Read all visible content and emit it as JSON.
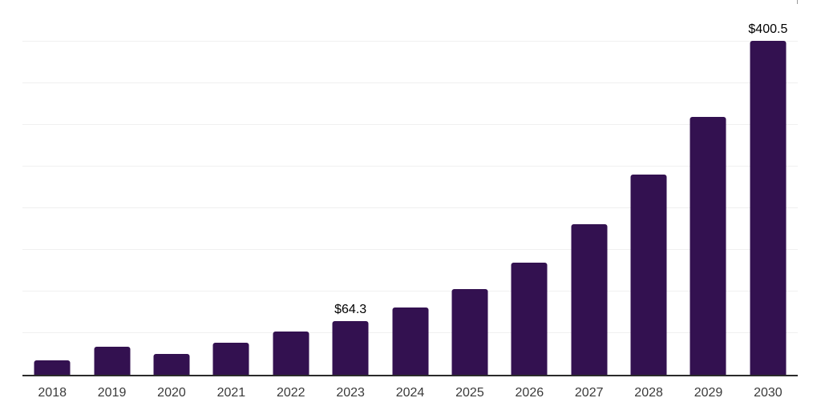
{
  "chart_data": {
    "type": "bar",
    "title": "",
    "xlabel": "",
    "ylabel": "",
    "categories": [
      "2018",
      "2019",
      "2020",
      "2021",
      "2022",
      "2023",
      "2024",
      "2025",
      "2026",
      "2027",
      "2028",
      "2029",
      "2030"
    ],
    "values": [
      17.8,
      33.5,
      24.8,
      38.3,
      52.4,
      64.3,
      80.3,
      103.3,
      134.7,
      181.0,
      240.0,
      309.7,
      400.5
    ],
    "data_labels": {
      "2023": "$64.3",
      "2030": "$400.5"
    },
    "ylim": [
      0,
      450
    ],
    "grid": true,
    "gridline_interval": 50,
    "legend": "none",
    "colors": {
      "bar": "#331150",
      "gridline": "#f0f0f0",
      "axis_line": "#2b2b2b",
      "tick_label": "#3a3a3a",
      "data_label": "#000000",
      "background": "#ffffff"
    }
  }
}
